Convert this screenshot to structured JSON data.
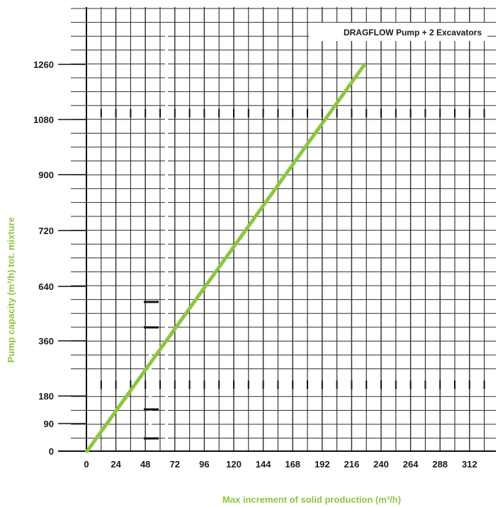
{
  "chart_data": {
    "type": "line",
    "xlabel": "Max increment of solid production (m³/h)",
    "ylabel": "Pump capacity (m³/h) tot. mixture",
    "x_ticks": [
      "0",
      "24",
      "48",
      "72",
      "96",
      "120",
      "144",
      "168",
      "192",
      "216",
      "240",
      "264",
      "288",
      "312"
    ],
    "y_ticks": [
      "0",
      "90",
      "180",
      "360",
      "640",
      "720",
      "900",
      "1080",
      "1260"
    ],
    "series": [
      {
        "name": "DRAGFLOW Pump + 2 Excavators",
        "x": [
          "0",
          "226"
        ],
        "y": [
          "0",
          "1260"
        ]
      }
    ],
    "grid": true,
    "legend": "top-right",
    "colors": {
      "series": "#8cc63f",
      "grid": "#2b2b2b",
      "axis_title": "#8cc63f"
    }
  }
}
